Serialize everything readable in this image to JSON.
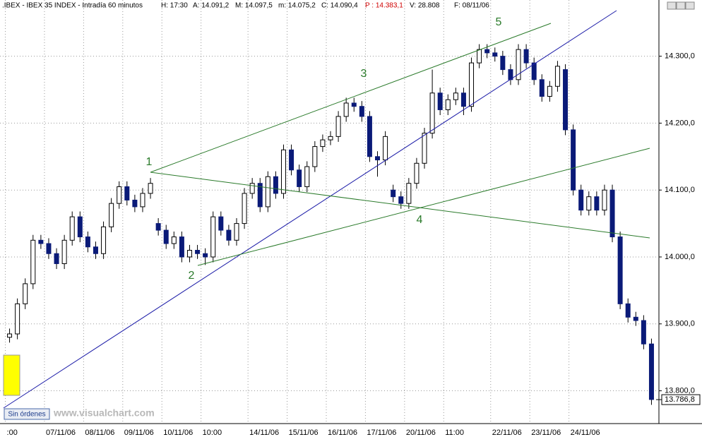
{
  "header": {
    "symbol": ".IBEX - IBEX 35 INDEX - Intradía 60 minutos",
    "hour": "H: 17:30",
    "open": "A: 14.091,2",
    "high": "M: 14.097,5",
    "low": "m: 14.075,2",
    "close": "C: 14.090,4",
    "pointer": "P : 14.383,1",
    "volume": "V: 28.808",
    "date": "F: 08/11/06"
  },
  "footer": {
    "orders": "Sin órdenes",
    "site": "www.visualchart.com"
  },
  "annotations": [
    "1",
    "2",
    "3",
    "4",
    "5"
  ],
  "chart_data": {
    "type": "candlestick",
    "up_color": "#ffffff",
    "down_color": "#0a1a78",
    "ylim": [
      13751,
      14384
    ],
    "yticks": [
      {
        "value": 13800,
        "label": "13.800,0"
      },
      {
        "value": 13900,
        "label": "13.900,0"
      },
      {
        "value": 14000,
        "label": "14.000,0"
      },
      {
        "value": 14100,
        "label": "14.100,0"
      },
      {
        "value": 14200,
        "label": "14.200,0"
      },
      {
        "value": 14300,
        "label": "14.300,0"
      }
    ],
    "grid": true,
    "last_value": 13786.8,
    "last_label": "13.786,8",
    "categories": [
      ":00",
      null,
      null,
      null,
      null,
      "07/11/06",
      null,
      null,
      null,
      null,
      "08/11/06",
      null,
      null,
      null,
      null,
      "09/11/06",
      null,
      null,
      null,
      null,
      "10/11/06",
      null,
      null,
      null,
      null,
      "10:00",
      null,
      null,
      null,
      null,
      null,
      "14/11/06",
      null,
      null,
      null,
      null,
      "15/11/06",
      null,
      null,
      null,
      null,
      "16/11/06",
      null,
      null,
      null,
      null,
      "17/11/06",
      null,
      null,
      null,
      null,
      "20/11/06",
      null,
      null,
      null,
      null,
      "11:00",
      null,
      null,
      null,
      null,
      null,
      "22/11/06",
      null,
      null,
      null,
      null,
      "23/11/06",
      null,
      null,
      null,
      null,
      "24/11/06",
      null,
      null,
      null,
      null,
      null,
      null,
      null,
      null,
      null,
      null
    ],
    "open": [
      13880,
      13885,
      13930,
      13960,
      14025,
      14020,
      14005,
      13990,
      14025,
      14060,
      14030,
      14015,
      14005,
      14045,
      14080,
      14105,
      14085,
      14075,
      14095,
      14050,
      14040,
      14020,
      14030,
      14000,
      14010,
      14005,
      14000,
      14060,
      14040,
      14025,
      14050,
      14095,
      14110,
      14075,
      14120,
      14095,
      14160,
      14130,
      14105,
      14135,
      14165,
      14175,
      14180,
      14210,
      14230,
      14225,
      14210,
      14150,
      14145,
      14100,
      14090,
      14080,
      14110,
      14140,
      14185,
      14245,
      14220,
      14235,
      14245,
      14225,
      14290,
      14310,
      14305,
      14300,
      14280,
      14265,
      14310,
      14290,
      14265,
      14240,
      14255,
      14280,
      14190,
      14100,
      14070,
      14090,
      14070,
      14100,
      14030,
      13930,
      13910,
      13905,
      13870
    ],
    "high": [
      13893,
      13938,
      13968,
      14033,
      14033,
      14028,
      14013,
      14033,
      14068,
      14068,
      14038,
      14023,
      14053,
      14088,
      14113,
      14113,
      14093,
      14103,
      14118,
      14058,
      14048,
      14038,
      14038,
      14018,
      14018,
      14013,
      14068,
      14068,
      14048,
      14058,
      14103,
      14118,
      14118,
      14128,
      14128,
      14168,
      14168,
      14138,
      14143,
      14173,
      14183,
      14188,
      14218,
      14238,
      14238,
      14233,
      14218,
      14158,
      14188,
      14108,
      14098,
      14118,
      14148,
      14193,
      14280,
      14253,
      14243,
      14253,
      14253,
      14298,
      14318,
      14318,
      14313,
      14308,
      14288,
      14318,
      14318,
      14298,
      14273,
      14263,
      14293,
      14288,
      14198,
      14108,
      14098,
      14098,
      14108,
      14108,
      14038,
      13938,
      13918,
      13913,
      13878
    ],
    "low": [
      13872,
      13877,
      13922,
      13952,
      14012,
      13997,
      13982,
      13982,
      14017,
      14022,
      14007,
      13997,
      13997,
      14037,
      14072,
      14077,
      14067,
      14067,
      14087,
      14032,
      14012,
      14012,
      13992,
      13992,
      13997,
      13988,
      13992,
      14032,
      14017,
      14017,
      14042,
      14087,
      14067,
      14067,
      14087,
      14087,
      14122,
      14097,
      14097,
      14127,
      14157,
      14167,
      14172,
      14202,
      14217,
      14202,
      14142,
      14120,
      14137,
      14082,
      14072,
      14072,
      14102,
      14132,
      14177,
      14212,
      14212,
      14227,
      14212,
      14217,
      14282,
      14297,
      14292,
      14272,
      14257,
      14257,
      14282,
      14257,
      14232,
      14232,
      14247,
      14182,
      14092,
      14062,
      14062,
      14062,
      14062,
      14022,
      13922,
      13902,
      13897,
      13862,
      13779
    ],
    "close": [
      13885,
      13930,
      13960,
      14025,
      14020,
      14005,
      13990,
      14025,
      14060,
      14030,
      14015,
      14005,
      14045,
      14080,
      14105,
      14085,
      14075,
      14095,
      14110,
      14040,
      14020,
      14030,
      14000,
      14010,
      14005,
      14000,
      14060,
      14040,
      14025,
      14050,
      14095,
      14110,
      14075,
      14120,
      14095,
      14160,
      14130,
      14105,
      14135,
      14165,
      14175,
      14180,
      14210,
      14230,
      14225,
      14210,
      14150,
      14145,
      14180,
      14090,
      14080,
      14110,
      14140,
      14185,
      14245,
      14220,
      14235,
      14245,
      14225,
      14290,
      14310,
      14305,
      14300,
      14280,
      14265,
      14310,
      14290,
      14265,
      14240,
      14255,
      14285,
      14190,
      14100,
      14070,
      14090,
      14070,
      14100,
      14030,
      13930,
      13910,
      13905,
      13870,
      13787
    ]
  }
}
